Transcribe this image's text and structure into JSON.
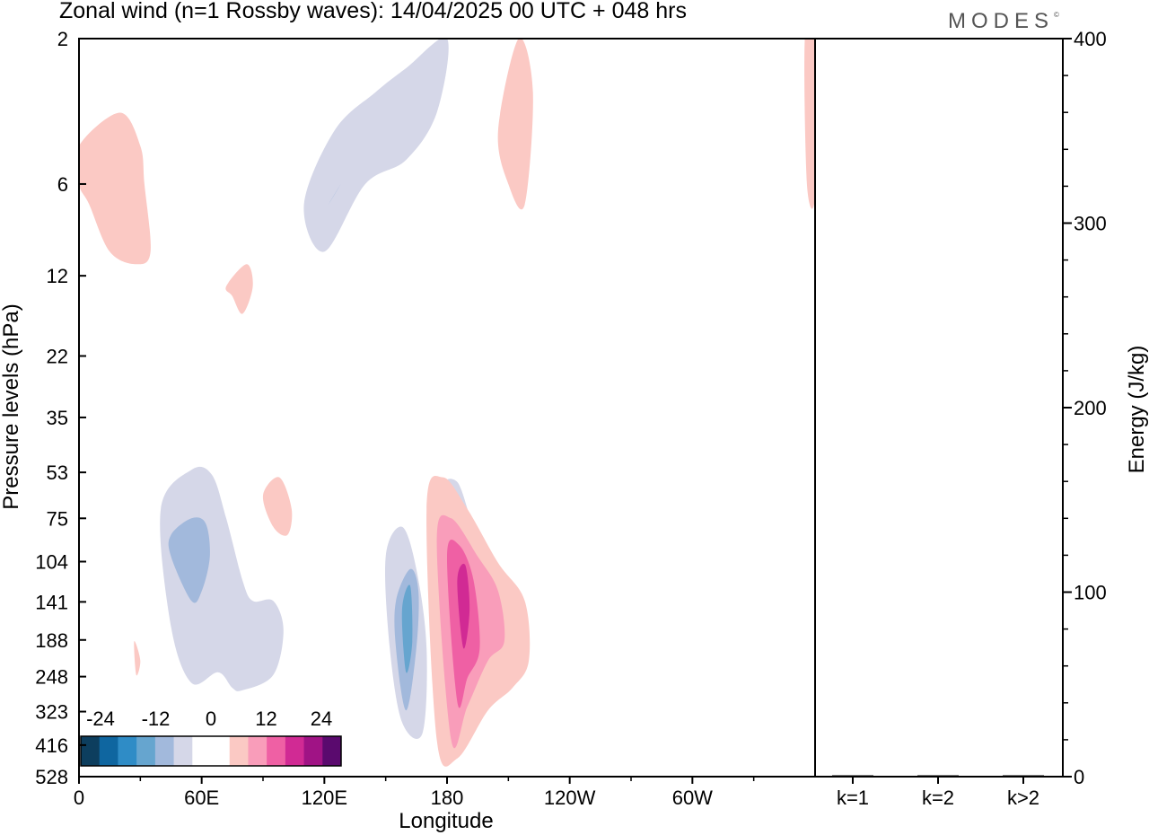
{
  "title": "Zonal wind (n=1 Rossby waves):  14/04/2025  00 UTC  + 048 hrs",
  "logo": "MODES",
  "logo_mark": "©",
  "chart_data": [
    {
      "type": "heatmap",
      "xlabel": "Longitude",
      "ylabel": "Pressure levels (hPa)",
      "x_ticks": [
        "0",
        "60E",
        "120E",
        "180",
        "120W",
        "60W"
      ],
      "y_ticks": [
        "2",
        "6",
        "12",
        "22",
        "35",
        "53",
        "75",
        "104",
        "141",
        "188",
        "248",
        "323",
        "416",
        "528"
      ],
      "colorbar": {
        "labels": [
          "-24",
          "-12",
          "0",
          "12",
          "24"
        ],
        "colors": [
          "#0d3e5e",
          "#0f66a0",
          "#2f8cc6",
          "#66a5cf",
          "#a2b9dc",
          "#d5d7e8",
          "#ffffff",
          "#ffffff",
          "#fbc9c4",
          "#f99dba",
          "#ef60a4",
          "#d12a94",
          "#a01385",
          "#5a0a6e"
        ]
      },
      "filled_regions": [
        {
          "level": "pos1",
          "color": "#fbc9c4",
          "lon": [
            0,
            20,
            30,
            32,
            35,
            28,
            15,
            5,
            0
          ],
          "lev": [
            4.5,
            3.5,
            4.5,
            6,
            10,
            11,
            10,
            7,
            6
          ]
        },
        {
          "level": "neg1",
          "color": "#d5d7e8",
          "lon": [
            110,
            125,
            145,
            160,
            180,
            175,
            160,
            140,
            120,
            110
          ],
          "lev": [
            7,
            4,
            3,
            2.5,
            2,
            3.5,
            5,
            6,
            10,
            7
          ]
        },
        {
          "level": "neg2",
          "color": "#a2b9dc",
          "lon": [
            122,
            128,
            125,
            122
          ],
          "lev": [
            7,
            6,
            6.5,
            7
          ]
        },
        {
          "level": "pos1",
          "color": "#fbc9c4",
          "lon": [
            72,
            82,
            85,
            80,
            75,
            72
          ],
          "lev": [
            13,
            11,
            13,
            16,
            14,
            13
          ]
        },
        {
          "level": "pos1",
          "color": "#fbc9c4",
          "lon": [
            205,
            215,
            222,
            218,
            210,
            205
          ],
          "lev": [
            4,
            2,
            3,
            7,
            6,
            4
          ]
        },
        {
          "level": "neg1",
          "color": "#d5d7e8",
          "lon": [
            40,
            55,
            65,
            72,
            80,
            85,
            95,
            100,
            95,
            80,
            75,
            68,
            55,
            45,
            40
          ],
          "lev": [
            70,
            52,
            54,
            75,
            120,
            140,
            140,
            175,
            245,
            275,
            270,
            240,
            260,
            170,
            70
          ]
        },
        {
          "level": "neg2",
          "color": "#a2b9dc",
          "lon": [
            45,
            55,
            62,
            64,
            60,
            55,
            45
          ],
          "lev": [
            85,
            75,
            78,
            100,
            130,
            140,
            100
          ]
        },
        {
          "level": "pos1",
          "color": "#fbc9c4",
          "lon": [
            90,
            98,
            104,
            102,
            95,
            90
          ],
          "lev": [
            63,
            55,
            70,
            85,
            80,
            63
          ]
        },
        {
          "level": "neg1",
          "color": "#d5d7e8",
          "lon": [
            179,
            185,
            190,
            192,
            185,
            179
          ],
          "lev": [
            58,
            57,
            70,
            82,
            80,
            58
          ]
        },
        {
          "level": "neg1",
          "color": "#d5d7e8",
          "lon": [
            150,
            158,
            165,
            170,
            168,
            158,
            152,
            150
          ],
          "lev": [
            100,
            80,
            110,
            200,
            380,
            350,
            200,
            100
          ]
        },
        {
          "level": "neg2",
          "color": "#a2b9dc",
          "lon": [
            155,
            162,
            166,
            165,
            160,
            155
          ],
          "lev": [
            140,
            110,
            130,
            200,
            320,
            200
          ]
        },
        {
          "level": "neg3",
          "color": "#66a5cf",
          "lon": [
            158,
            162,
            163,
            160,
            158
          ],
          "lev": [
            150,
            125,
            190,
            240,
            150
          ]
        },
        {
          "level": "pos1",
          "color": "#fbc9c4",
          "lon": [
            170,
            178,
            190,
            205,
            218,
            220,
            212,
            200,
            185,
            175,
            170
          ],
          "lev": [
            70,
            55,
            70,
            105,
            140,
            220,
            270,
            320,
            460,
            400,
            70
          ]
        },
        {
          "level": "pos2",
          "color": "#f99dba",
          "lon": [
            175,
            182,
            195,
            205,
            208,
            200,
            190,
            182,
            175
          ],
          "lev": [
            90,
            75,
            100,
            130,
            190,
            220,
            310,
            400,
            90
          ]
        },
        {
          "level": "pos3",
          "color": "#ef60a4",
          "lon": [
            180,
            186,
            193,
            196,
            190,
            185,
            180
          ],
          "lev": [
            100,
            92,
            120,
            200,
            250,
            300,
            100
          ]
        },
        {
          "level": "pos4",
          "color": "#d12a94",
          "lon": [
            185,
            189,
            191,
            188,
            185
          ],
          "lev": [
            120,
            107,
            150,
            200,
            120
          ]
        },
        {
          "level": "pos1",
          "color": "#fbc9c4",
          "lon": [
            27,
            30,
            28,
            27
          ],
          "lev": [
            190,
            220,
            245,
            190
          ]
        },
        {
          "level": "pos1",
          "color": "#fbc9c4",
          "lon": [
            355,
            360,
            360,
            356,
            355
          ],
          "lev": [
            2,
            2,
            6.5,
            6,
            2
          ]
        }
      ]
    },
    {
      "type": "bar",
      "categories": [
        "k=1",
        "k=2",
        "k>2"
      ],
      "values": [
        0.5,
        0.1,
        0.2
      ],
      "ylabel": "Energy (J/kg)",
      "ylim": [
        0,
        400
      ],
      "y_ticks": [
        "0",
        "100",
        "200",
        "300",
        "400"
      ]
    }
  ]
}
